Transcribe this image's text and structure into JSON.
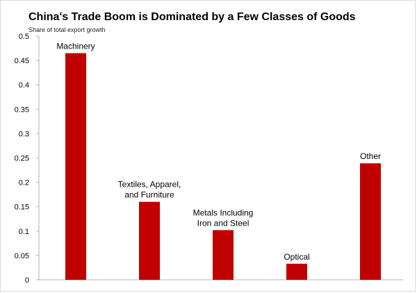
{
  "chart_data": {
    "type": "bar",
    "title": "China's Trade Boom is Dominated by a Few Classes of Goods",
    "subtitle": "Share of total export growth",
    "categories": [
      [
        "Machinery"
      ],
      [
        "Textiles, Apparel,",
        "and Furniture"
      ],
      [
        "Metals Including",
        "Iron and Steel"
      ],
      [
        "Optical"
      ],
      [
        "Other"
      ]
    ],
    "values": [
      0.465,
      0.16,
      0.102,
      0.033,
      0.239
    ],
    "yticks": [
      "0",
      "0.05",
      "0.1",
      "0.15",
      "0.2",
      "0.25",
      "0.3",
      "0.35",
      "0.4",
      "0.45",
      "0.5"
    ],
    "ylim": [
      0,
      0.5
    ],
    "grid": false,
    "bar_color": "#c00000"
  }
}
